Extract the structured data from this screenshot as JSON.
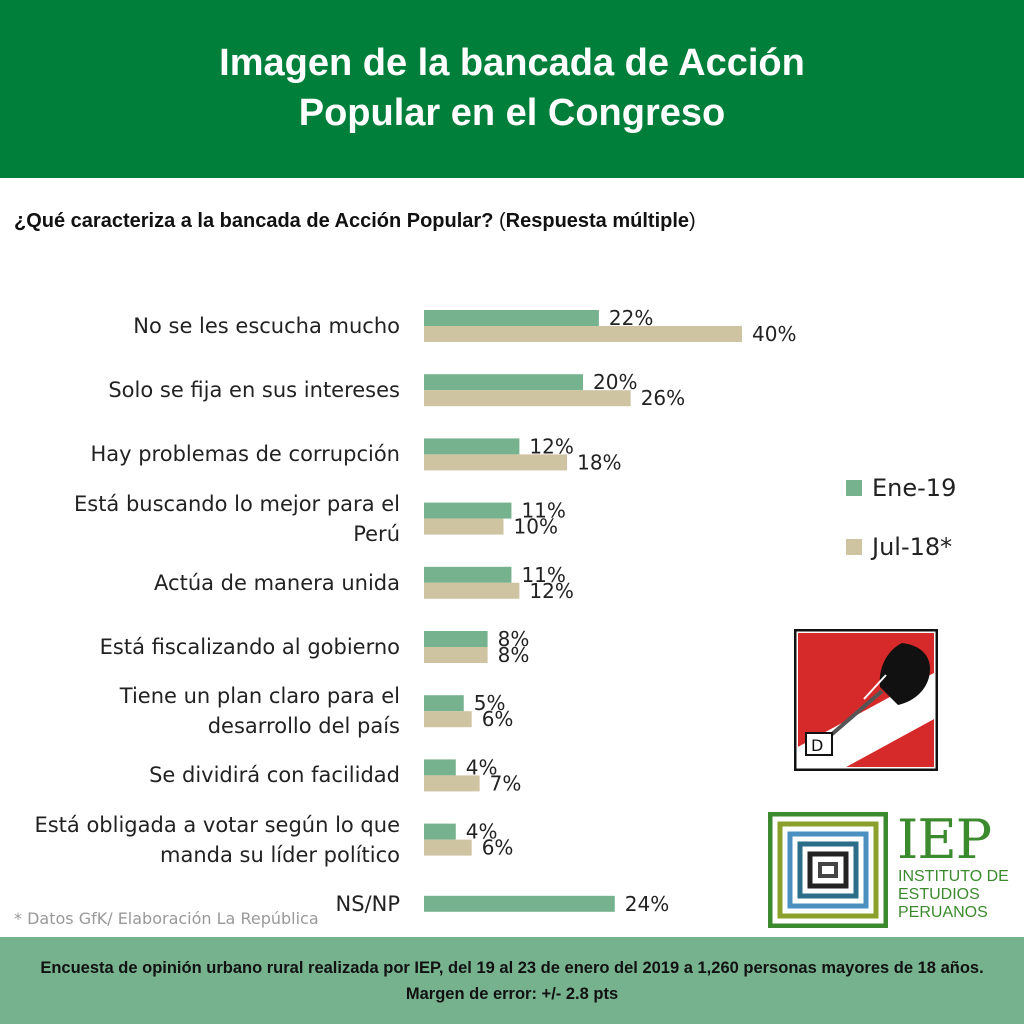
{
  "header": {
    "title_line1": "Imagen de la bancada de Acción",
    "title_line2": "Popular en el Congreso"
  },
  "question": {
    "bold": "¿Qué caracteriza a la bancada de Acción Popular?",
    "open": " (",
    "bold2": "Respuesta múltiple",
    "close": ")"
  },
  "categories": [
    {
      "line1": "No se les escucha mucho",
      "line2": ""
    },
    {
      "line1": "Solo se fija en sus intereses",
      "line2": ""
    },
    {
      "line1": "Hay problemas de corrupción",
      "line2": ""
    },
    {
      "line1": "Está buscando lo mejor para el",
      "line2": "Perú"
    },
    {
      "line1": "Actúa de manera unida",
      "line2": ""
    },
    {
      "line1": "Está fiscalizando al gobierno",
      "line2": ""
    },
    {
      "line1": "Tiene un plan claro para el",
      "line2": "desarrollo del país"
    },
    {
      "line1": "Se dividirá con facilidad",
      "line2": ""
    },
    {
      "line1": "Está obligada a votar según lo que",
      "line2": "manda su líder político"
    },
    {
      "line1": "NS/NP",
      "line2": ""
    }
  ],
  "chart_data": {
    "type": "bar",
    "orientation": "horizontal",
    "categories": [
      "No se les escucha mucho",
      "Solo se fija en sus intereses",
      "Hay problemas de corrupción",
      "Está buscando lo mejor para el Perú",
      "Actúa de manera unida",
      "Está fiscalizando al gobierno",
      "Tiene un plan claro para el desarrollo del país",
      "Se dividirá con facilidad",
      "Está obligada a votar según lo que manda su líder político",
      "NS/NP"
    ],
    "series": [
      {
        "name": "Ene-19",
        "color": "#77b28f",
        "values": [
          22,
          20,
          12,
          11,
          11,
          8,
          5,
          4,
          4,
          24
        ],
        "labels": [
          "22%",
          "20%",
          "12%",
          "11%",
          "11%",
          "8%",
          "5%",
          "4%",
          "4%",
          "24%"
        ]
      },
      {
        "name": "Jul-18*",
        "color": "#cfc4a2",
        "values": [
          40,
          26,
          18,
          10,
          12,
          8,
          6,
          7,
          6,
          null
        ],
        "labels": [
          "40%",
          "26%",
          "18%",
          "10%",
          "12%",
          "8%",
          "6%",
          "7%",
          "6%",
          ""
        ]
      }
    ],
    "legend_position": "right",
    "grid": false,
    "xlim": [
      0,
      40
    ]
  },
  "legend": [
    {
      "label": "Ene-19",
      "color": "#77b28f"
    },
    {
      "label": "Jul-18*",
      "color": "#cfc4a2"
    }
  ],
  "note": "* Datos GfK/ Elaboración La República",
  "footer": {
    "text": "Encuesta de opinión urbano rural realizada por IEP, del 19 al 23 de enero del 2019 a 1,260 personas mayores de 18 años. Margen de error: +/- 2.8 pts"
  },
  "iep": {
    "name": "IEP",
    "sub1": "INSTITUTO DE",
    "sub2": "ESTUDIOS",
    "sub3": "PERUANOS"
  },
  "colors": {
    "header_bg": "#007f3b",
    "footer_bg": "#77b28f",
    "ene19": "#77b28f",
    "jul18": "#cfc4a2"
  }
}
